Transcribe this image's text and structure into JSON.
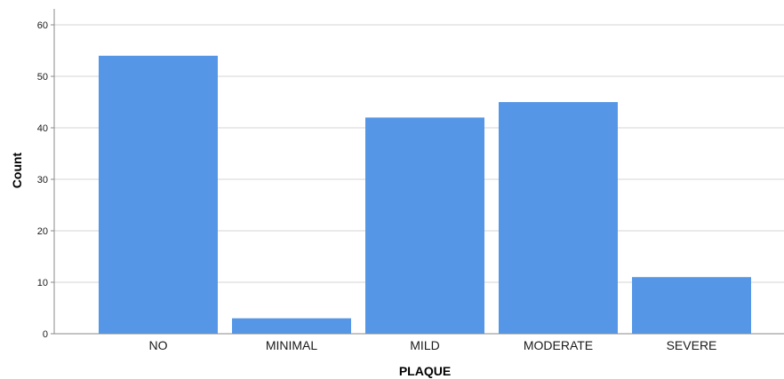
{
  "chart_data": {
    "type": "bar",
    "categories": [
      "NO",
      "MINIMAL",
      "MILD",
      "MODERATE",
      "SEVERE"
    ],
    "values": [
      54,
      3,
      42,
      45,
      11
    ],
    "xlabel": "PLAQUE",
    "ylabel": "Count",
    "ylim": [
      0,
      60
    ],
    "yticks": [
      0,
      10,
      20,
      30,
      40,
      50,
      60
    ],
    "grid": true,
    "legend": "none",
    "colors": {
      "bar": "#5597e6",
      "grid": "#d4d4d4",
      "axis": "#8a8a8a"
    }
  }
}
